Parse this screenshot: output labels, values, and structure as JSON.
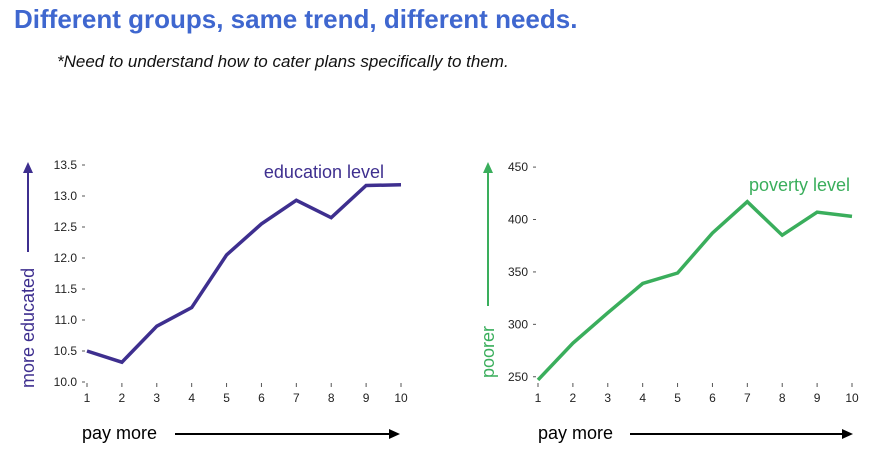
{
  "slide": {
    "title": "Different groups, same trend, different needs.",
    "subtitle": "*Need to understand how to cater plans specifically to them."
  },
  "chart_data": [
    {
      "type": "line",
      "series_label": "education level",
      "ylabel": "more educated",
      "xlabel": "pay more",
      "color": "#3e2f8f",
      "x": [
        1,
        2,
        3,
        4,
        5,
        6,
        7,
        8,
        9,
        10
      ],
      "y": [
        10.5,
        10.32,
        10.9,
        11.2,
        12.05,
        12.55,
        12.93,
        12.65,
        13.17,
        13.18
      ],
      "x_ticks": [
        "1",
        "2",
        "3",
        "4",
        "5",
        "6",
        "7",
        "8",
        "9",
        "10"
      ],
      "y_ticks": [
        "10.0",
        "10.5",
        "11.0",
        "11.5",
        "12.0",
        "12.5",
        "13.0",
        "13.5"
      ],
      "ylim": [
        10.0,
        13.5
      ],
      "xlim": [
        1,
        10
      ],
      "grid": false
    },
    {
      "type": "line",
      "series_label": "poverty level",
      "ylabel": "poorer",
      "xlabel": "pay more",
      "color": "#3aae5c",
      "x": [
        1,
        2,
        3,
        4,
        5,
        6,
        7,
        8,
        9,
        10
      ],
      "y": [
        247,
        282,
        311,
        339,
        349,
        387,
        417,
        385,
        407,
        403
      ],
      "x_ticks": [
        "1",
        "2",
        "3",
        "4",
        "5",
        "6",
        "7",
        "8",
        "9",
        "10"
      ],
      "y_ticks": [
        "250",
        "300",
        "350",
        "400",
        "450"
      ],
      "ylim": [
        245,
        452
      ],
      "xlim": [
        1,
        10
      ],
      "grid": false
    }
  ]
}
